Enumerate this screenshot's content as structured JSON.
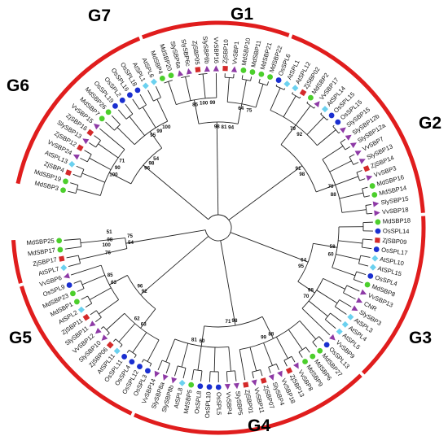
{
  "colors": {
    "arc": "#e01d1d",
    "branch": "#222222",
    "marker_green": "#4ccf2c",
    "marker_blue": "#1a2fd0",
    "marker_cyan": "#6bd1ef",
    "marker_purple": "#8e3aa6",
    "marker_red": "#d42a2a",
    "marker_gray": "#8a8a8a"
  },
  "groups": [
    {
      "id": "G1",
      "label": "G1"
    },
    {
      "id": "G2",
      "label": "G2"
    },
    {
      "id": "G3",
      "label": "G3"
    },
    {
      "id": "G4",
      "label": "G4"
    },
    {
      "id": "G5",
      "label": "G5"
    },
    {
      "id": "G6",
      "label": "G6"
    },
    {
      "id": "G7",
      "label": "G7"
    }
  ],
  "leaves": [
    {
      "name": "MdSBP3",
      "marker": "green"
    },
    {
      "name": "MdSBP19",
      "marker": "green"
    },
    {
      "name": "ZjSBP4",
      "marker": "red"
    },
    {
      "name": "AtSPL13",
      "marker": "cyan"
    },
    {
      "name": "VvSBP24",
      "marker": "purple"
    },
    {
      "name": "ZjSBP12",
      "marker": "red"
    },
    {
      "name": "SlySBP13",
      "marker": "purple"
    },
    {
      "name": "ZjSBP16",
      "marker": "red"
    },
    {
      "name": "VvSBP15",
      "marker": "purple"
    },
    {
      "name": "MdSBP7",
      "marker": "green"
    },
    {
      "name": "MdSBP26",
      "marker": "green"
    },
    {
      "name": "OsSPL19",
      "marker": "blue"
    },
    {
      "name": "OsSPL2",
      "marker": "blue"
    },
    {
      "name": "OsSPL16",
      "marker": "blue"
    },
    {
      "name": "OsSPL18",
      "marker": "blue"
    },
    {
      "name": "AtSPL1",
      "marker": "cyan"
    },
    {
      "name": "AtSPL6",
      "marker": "cyan"
    },
    {
      "name": "MdSBP4",
      "marker": "green"
    },
    {
      "name": "MdSBP20",
      "marker": "green"
    },
    {
      "name": "SlySBP6a",
      "marker": "purple"
    },
    {
      "name": "SlySBP6c",
      "marker": "purple"
    },
    {
      "name": "ZjSBP05",
      "marker": "red"
    },
    {
      "name": "SlySBP6b",
      "marker": "purple"
    },
    {
      "name": "VvSBP16",
      "marker": "purple"
    },
    {
      "name": "ZjSBP10",
      "marker": "red"
    },
    {
      "name": "VvSBP1",
      "marker": "purple"
    },
    {
      "name": "MdSBP10",
      "marker": "green"
    },
    {
      "name": "MdSBP11",
      "marker": "green"
    },
    {
      "name": "MdSBP21",
      "marker": "green"
    },
    {
      "name": "MdSBP22",
      "marker": "green"
    },
    {
      "name": "OsSPL6",
      "marker": "blue"
    },
    {
      "name": "AtSPL1",
      "marker": "cyan"
    },
    {
      "name": "AtSPL12",
      "marker": "cyan"
    },
    {
      "name": "ZjSBP02",
      "marker": "red"
    },
    {
      "name": "MdSBP2",
      "marker": "green"
    },
    {
      "name": "VvSBP17",
      "marker": "purple"
    },
    {
      "name": "AtSPL14",
      "marker": "cyan"
    },
    {
      "name": "OsSPL15",
      "marker": "blue"
    },
    {
      "name": "OsSPL15",
      "marker": "blue"
    },
    {
      "name": "SlySBP15",
      "marker": "purple"
    },
    {
      "name": "SlySBP12b",
      "marker": "purple"
    },
    {
      "name": "SlySBP12a",
      "marker": "purple"
    },
    {
      "name": "VvSBP7",
      "marker": "purple"
    },
    {
      "name": "SlySBP13",
      "marker": "purple"
    },
    {
      "name": "ZjSBP14",
      "marker": "red"
    },
    {
      "name": "VvSBP3",
      "marker": "purple"
    },
    {
      "name": "MdSBP16",
      "marker": "green"
    },
    {
      "name": "MdSBP14",
      "marker": "green"
    },
    {
      "name": "SlySBP15",
      "marker": "purple"
    },
    {
      "name": "VvSBP18",
      "marker": "purple"
    },
    {
      "name": "MdSBP18",
      "marker": "green"
    },
    {
      "name": "OsSPL14",
      "marker": "blue"
    },
    {
      "name": "ZjSBP09",
      "marker": "red"
    },
    {
      "name": "OsSPL17",
      "marker": "blue"
    },
    {
      "name": "AtSPL10",
      "marker": "cyan"
    },
    {
      "name": "AtSPL15",
      "marker": "cyan"
    },
    {
      "name": "OsSPL4",
      "marker": "blue"
    },
    {
      "name": "MdSBP8",
      "marker": "green"
    },
    {
      "name": "VvSBP13",
      "marker": "purple"
    },
    {
      "name": "CNR",
      "marker": "purple"
    },
    {
      "name": "SlySBP3",
      "marker": "purple"
    },
    {
      "name": "AtSPL3",
      "marker": "cyan"
    },
    {
      "name": "AtSPL4",
      "marker": "cyan"
    },
    {
      "name": "AtSPL5",
      "marker": "cyan"
    },
    {
      "name": "VvSBP9",
      "marker": "purple"
    },
    {
      "name": "OsSPL13",
      "marker": "blue"
    },
    {
      "name": "MdSBP27",
      "marker": "green"
    },
    {
      "name": "MdSBP6",
      "marker": "green"
    },
    {
      "name": "MdSBP9",
      "marker": "green"
    },
    {
      "name": "VvSBP8",
      "marker": "purple"
    },
    {
      "name": "ZjSBP13",
      "marker": "red"
    },
    {
      "name": "VvSBP18",
      "marker": "purple"
    },
    {
      "name": "SlySBP4",
      "marker": "purple"
    },
    {
      "name": "ZjSBP07",
      "marker": "red"
    },
    {
      "name": "VvSBP11",
      "marker": "purple"
    },
    {
      "name": "ZjSBP01",
      "marker": "red"
    },
    {
      "name": "SlySBP5",
      "marker": "purple"
    },
    {
      "name": "VvSBP4",
      "marker": "purple"
    },
    {
      "name": "OsSPL5",
      "marker": "blue"
    },
    {
      "name": "OsSPL10",
      "marker": "blue"
    },
    {
      "name": "OsSPL8",
      "marker": "blue"
    },
    {
      "name": "MdSBP5",
      "marker": "green"
    },
    {
      "name": "AtSPL8",
      "marker": "cyan"
    },
    {
      "name": "SlySBP8b",
      "marker": "purple"
    },
    {
      "name": "SlySBP8a",
      "marker": "purple"
    },
    {
      "name": "VvSBP14",
      "marker": "purple"
    },
    {
      "name": "OsSPL3",
      "marker": "blue"
    },
    {
      "name": "OsSPL12",
      "marker": "blue"
    },
    {
      "name": "OsSPL4",
      "marker": "blue"
    },
    {
      "name": "OsSPL11",
      "marker": "blue"
    },
    {
      "name": "AtSPL11",
      "marker": "cyan"
    },
    {
      "name": "ZjSBP06",
      "marker": "red"
    },
    {
      "name": "SlySBP10",
      "marker": "purple"
    },
    {
      "name": "VvSBP12",
      "marker": "purple"
    },
    {
      "name": "SlySBP11",
      "marker": "purple"
    },
    {
      "name": "ZjSBP11",
      "marker": "red"
    },
    {
      "name": "AtSPL2",
      "marker": "cyan"
    },
    {
      "name": "MdSBP1",
      "marker": "green"
    },
    {
      "name": "MdSBP23",
      "marker": "green"
    },
    {
      "name": "OsSPL9",
      "marker": "blue"
    },
    {
      "name": "VvSBP6",
      "marker": "purple"
    },
    {
      "name": "AtSPL7",
      "marker": "cyan"
    },
    {
      "name": "ZjSBP17",
      "marker": "red"
    },
    {
      "name": "MdSBP17",
      "marker": "green"
    },
    {
      "name": "MdSBP25",
      "marker": "green"
    }
  ],
  "bootstrap_values": [
    "96",
    "100",
    "95",
    "98",
    "85",
    "64",
    "91",
    "79",
    "70",
    "64",
    "58",
    "98",
    "98",
    "88",
    "60",
    "92",
    "63",
    "63",
    "54",
    "76",
    "98",
    "98",
    "90",
    "99",
    "81",
    "100",
    "75",
    "98",
    "92",
    "88",
    "95",
    "60",
    "70",
    "71",
    "99",
    "81",
    "96",
    "62",
    "85",
    "75",
    "100",
    "51",
    "54",
    "71",
    "100",
    "94",
    "99"
  ]
}
